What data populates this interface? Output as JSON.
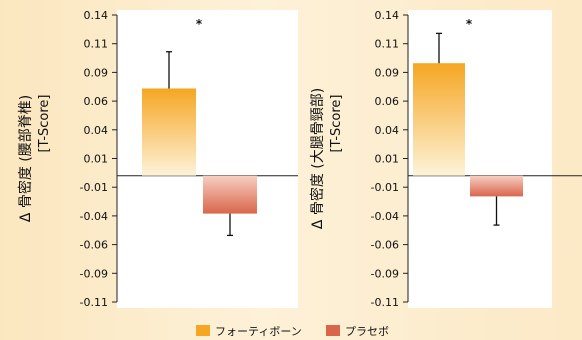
{
  "colors": {
    "background": "#fdf0d6",
    "panel": "#ffffff",
    "forteo_top": "#f6a623",
    "forteo_bottom": "#fdf3d9",
    "placebo_top": "#d9664b",
    "placebo_bottom": "#f7cfc2",
    "axis": "#222222"
  },
  "legend": {
    "position": "bottom-center",
    "items": [
      {
        "label": "フォーティボーン",
        "color": "#f6a623"
      },
      {
        "label": "プラセボ",
        "color": "#d9664b"
      }
    ]
  },
  "chart_data": [
    {
      "type": "bar",
      "ylabel": "Δ 骨密度 (腰部脊椎)",
      "ylabel_sub": "[T-Score]",
      "ylim": [
        -0.11,
        0.14
      ],
      "yticks": [
        "0.14",
        "0.11",
        "0.09",
        "0.06",
        "0.04",
        "0.01",
        "-0.01",
        "-0.04",
        "-0.06",
        "-0.09",
        "-0.11"
      ],
      "series": [
        {
          "name": "フォーティボーン",
          "value": 0.076,
          "error_high": 0.108
        },
        {
          "name": "プラセボ",
          "value": -0.033,
          "error_low": -0.052
        }
      ],
      "annotation": "*"
    },
    {
      "type": "bar",
      "ylabel": "Δ 骨密度 (大腿骨頸部)",
      "ylabel_sub": "[T-Score]",
      "ylim": [
        -0.11,
        0.14
      ],
      "yticks": [
        "0.14",
        "0.11",
        "0.09",
        "0.06",
        "0.04",
        "0.01",
        "-0.01",
        "-0.04",
        "-0.06",
        "-0.09",
        "-0.11"
      ],
      "series": [
        {
          "name": "フォーティボーン",
          "value": 0.098,
          "error_high": 0.124
        },
        {
          "name": "プラセボ",
          "value": -0.018,
          "error_low": -0.043
        }
      ],
      "annotation": "*"
    }
  ]
}
